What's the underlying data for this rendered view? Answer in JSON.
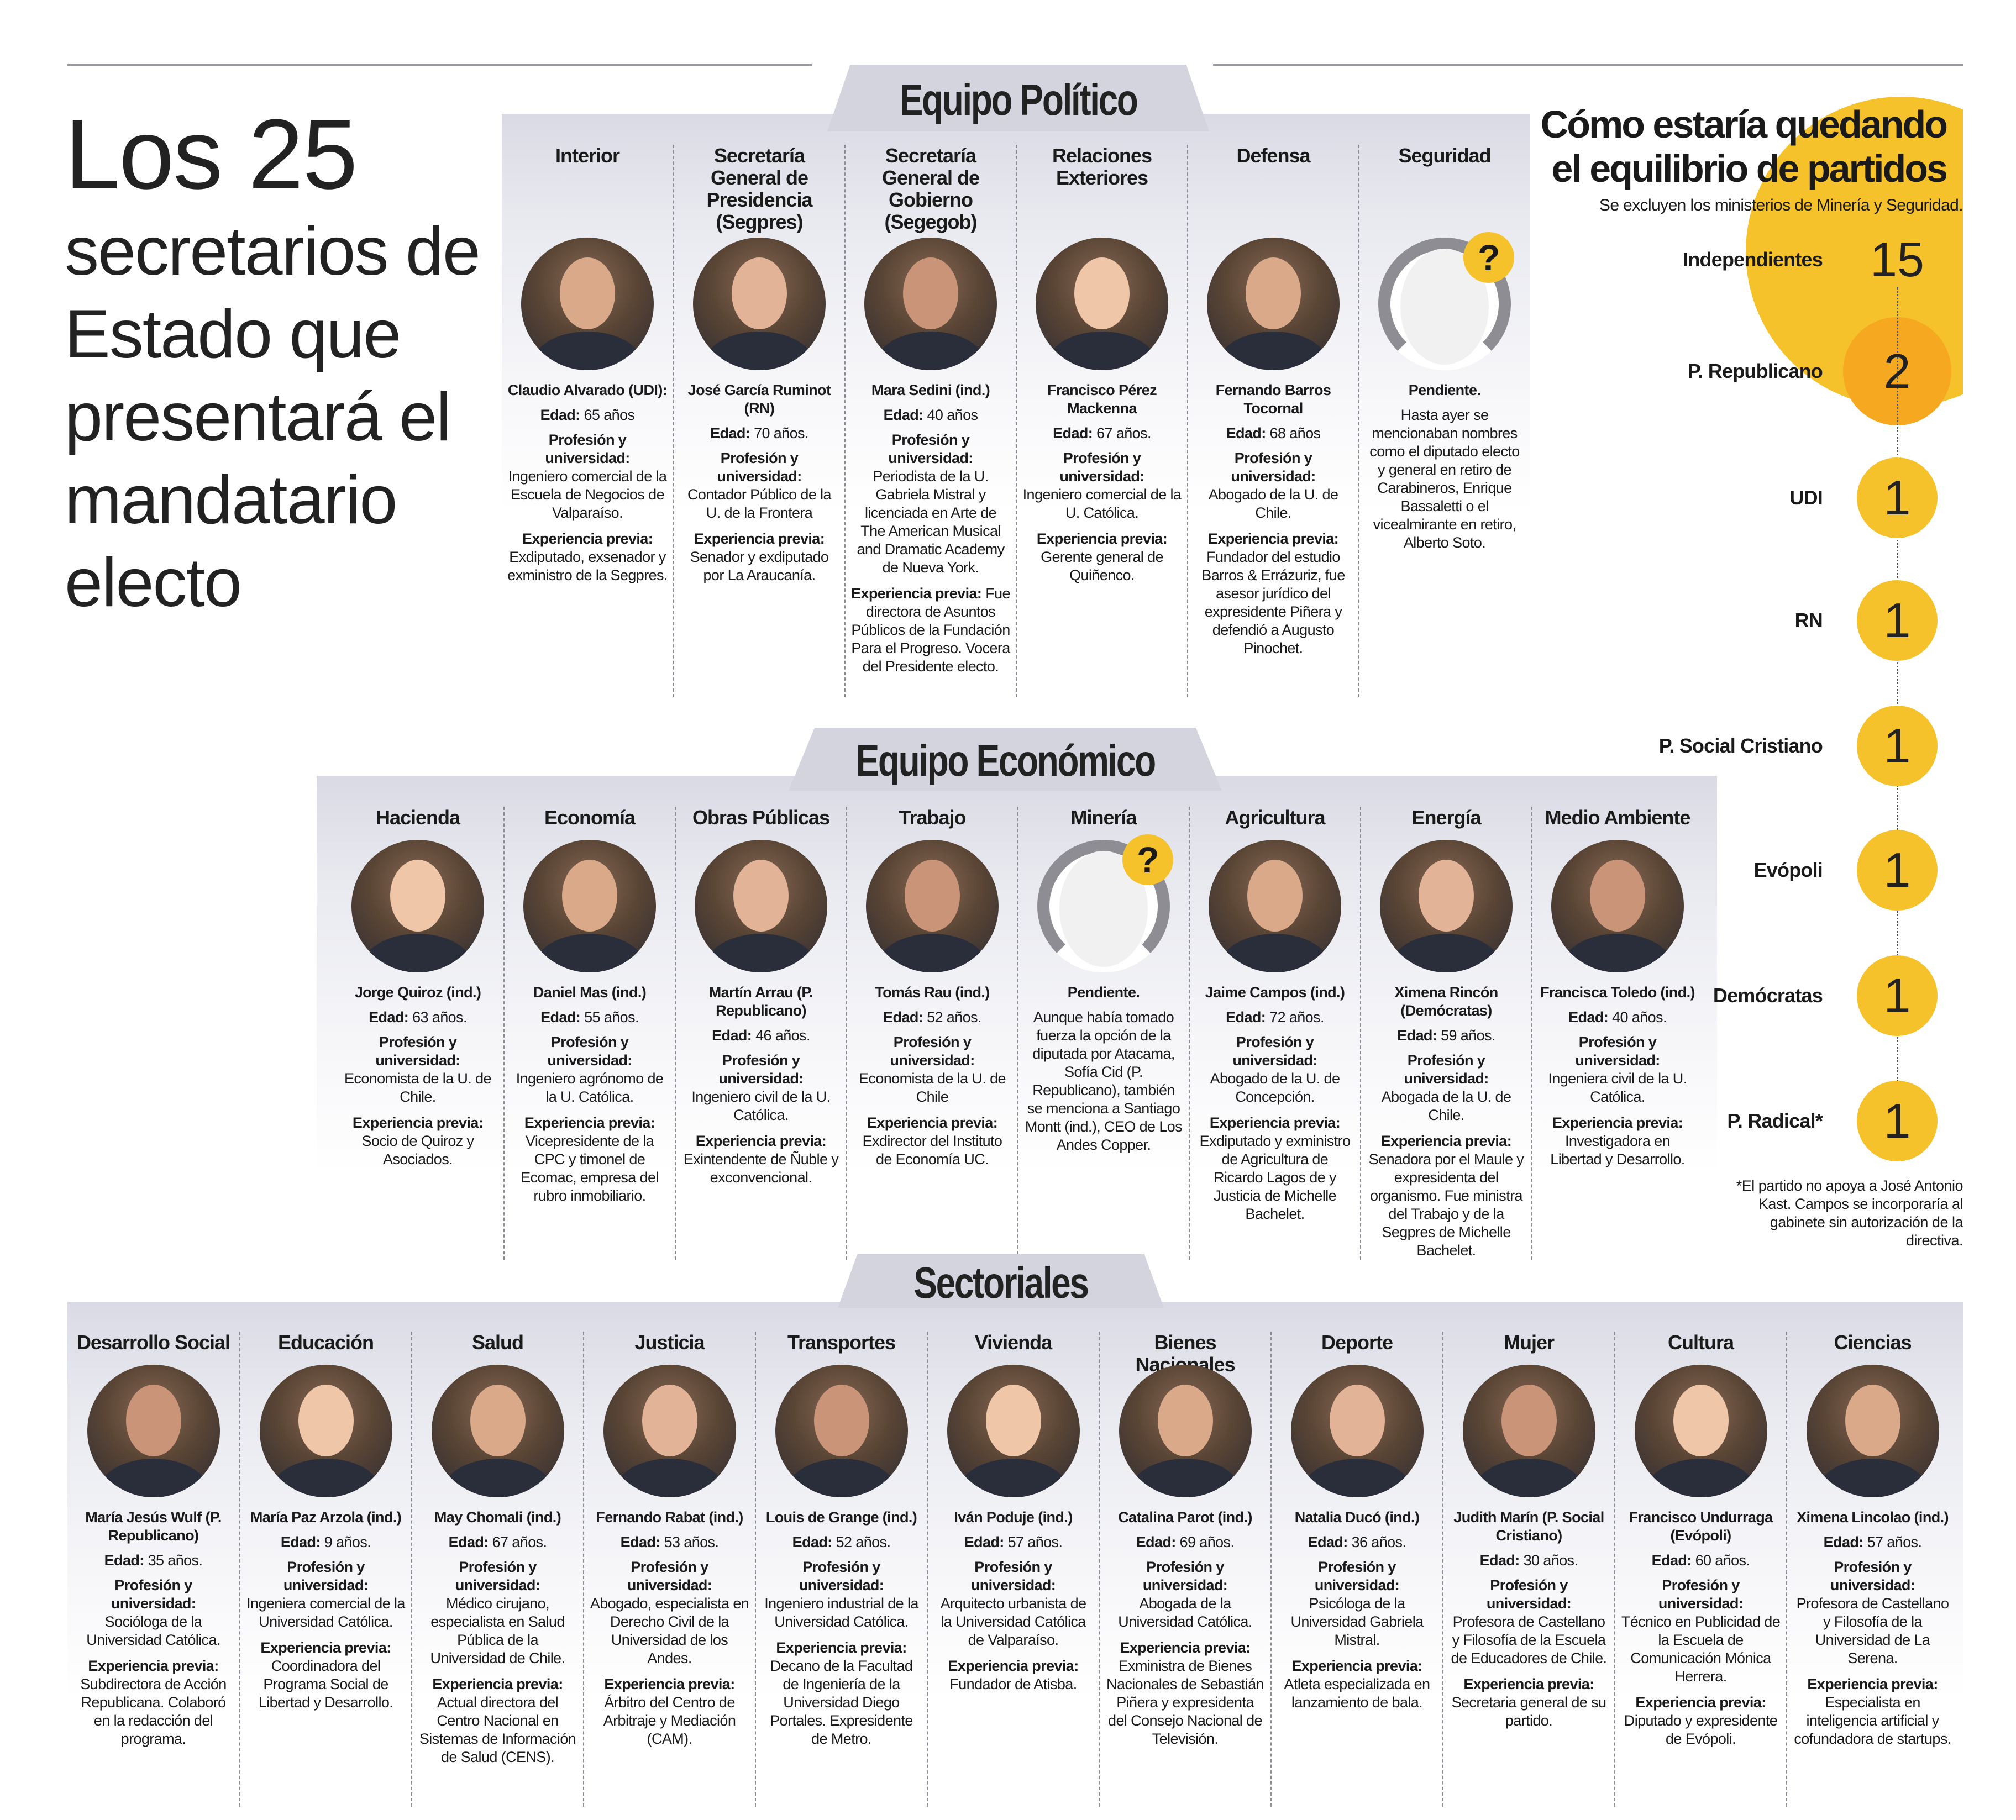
{
  "title": {
    "lines": [
      "Los 25",
      "secretarios de",
      "Estado que",
      "presentará el",
      "mandatario",
      "electo"
    ]
  },
  "labels": {
    "age": "Edad:",
    "profession": "Profesión y universidad:",
    "experience": "Experiencia previa:"
  },
  "sections": [
    {
      "title": "Equipo Político",
      "ministries": [
        {
          "ministry": "Interior",
          "name": "Claudio Alvarado (UDI):",
          "age": "65 años",
          "profession": "Ingeniero comercial de la Escuela de Negocios de Valparaíso.",
          "experience": "Exdiputado, exsenador y exministro de la Segpres."
        },
        {
          "ministry": "Secretaría General de Presidencia (Segpres)",
          "name": "José García Ruminot (RN)",
          "age": "70 años.",
          "profession": "Contador Público de la U. de la Frontera",
          "experience": "Senador y exdiputado por La Araucanía."
        },
        {
          "ministry": "Secretaría General de Gobierno (Segegob)",
          "name": "Mara Sedini (ind.)",
          "age": "40 años",
          "profession": "Periodista de la U. Gabriela Mistral y licenciada en Arte de The American Musical and Dramatic Academy de Nueva York.",
          "experience": "Fue directora de Asuntos Públicos de la Fundación Para el Progreso. Vocera del Presidente electo."
        },
        {
          "ministry": "Relaciones Exteriores",
          "name": "Francisco Pérez Mackenna",
          "age": "67 años.",
          "profession": "Ingeniero comercial de la U. Católica.",
          "experience": "Gerente general de Quiñenco."
        },
        {
          "ministry": "Defensa",
          "name": "Fernando Barros Tocornal",
          "age": "68 años",
          "profession": "Abogado de la U. de Chile.",
          "experience": "Fundador del estudio Barros & Errázuriz, fue asesor jurídico del expresidente Piñera y defendió a Augusto Pinochet."
        },
        {
          "ministry": "Seguridad",
          "pending": true,
          "name": "Pendiente.",
          "note": "Hasta ayer se mencionaban nombres como el diputado electo y general en retiro de Carabineros, Enrique Bassaletti o el vicealmirante en retiro, Alberto Soto."
        }
      ]
    },
    {
      "title": "Equipo Económico",
      "ministries": [
        {
          "ministry": "Hacienda",
          "name": "Jorge Quiroz (ind.)",
          "age": "63 años.",
          "profession": "Economista de la U. de Chile.",
          "experience": "Socio de Quiroz y Asociados."
        },
        {
          "ministry": "Economía",
          "name": "Daniel Mas (ind.)",
          "age": "55 años.",
          "profession": "Ingeniero agrónomo de la U. Católica.",
          "experience": "Vicepresidente de la CPC y timonel de Ecomac, empresa del rubro inmobiliario."
        },
        {
          "ministry": "Obras Públicas",
          "name": "Martín Arrau (P. Republicano)",
          "age": "46 años.",
          "profession": "Ingeniero civil de la U. Católica.",
          "experience": "Exintendente de Ñuble y exconvencional."
        },
        {
          "ministry": "Trabajo",
          "name": "Tomás Rau (ind.)",
          "age": "52 años.",
          "profession": "Economista de la U. de Chile",
          "experience": "Exdirector del Instituto de Economía UC."
        },
        {
          "ministry": "Minería",
          "pending": true,
          "name": "Pendiente.",
          "note": "Aunque había tomado fuerza la opción de la diputada por Atacama, Sofía Cid (P. Republicano), también se menciona a Santiago Montt (ind.), CEO de Los Andes Copper."
        },
        {
          "ministry": "Agricultura",
          "name": "Jaime Campos (ind.)",
          "age": "72 años.",
          "profession": "Abogado de la U. de Concepción.",
          "experience": "Exdiputado y exministro de Agricultura de Ricardo Lagos de y Justicia de Michelle Bachelet."
        },
        {
          "ministry": "Energía",
          "name": "Ximena Rincón (Demócratas)",
          "age": "59 años.",
          "profession": "Abogada de la U. de Chile.",
          "experience": "Senadora por el Maule y expresidenta del organismo. Fue ministra del Trabajo y de la Segpres de Michelle Bachelet."
        },
        {
          "ministry": "Medio Ambiente",
          "name": "Francisca Toledo (ind.)",
          "age": "40 años.",
          "profession": "Ingeniera civil de la U. Católica.",
          "experience": "Investigadora en Libertad y Desarrollo."
        }
      ]
    },
    {
      "title": "Sectoriales",
      "ministries": [
        {
          "ministry": "Desarrollo Social",
          "name": "María Jesús Wulf (P. Republicano)",
          "age": "35 años.",
          "profession": "Socióloga de la Universidad Católica.",
          "experience": "Subdirectora de Acción Republicana. Colaboró en la redacción del programa."
        },
        {
          "ministry": "Educación",
          "name": "María Paz Arzola (ind.)",
          "age": "9 años.",
          "profession": "Ingeniera comercial de la Universidad Católica.",
          "experience": "Coordinadora del Programa Social de Libertad y Desarrollo."
        },
        {
          "ministry": "Salud",
          "name": "May Chomali (ind.)",
          "age": "67 años.",
          "profession": "Médico cirujano, especialista en Salud Pública de la Universidad de Chile.",
          "experience": "Actual directora del Centro Nacional en Sistemas de Información de Salud (CENS)."
        },
        {
          "ministry": "Justicia",
          "name": "Fernando Rabat (ind.)",
          "age": "53 años.",
          "profession": "Abogado, especialista en Derecho Civil de la Universidad de los Andes.",
          "experience": "Árbitro del Centro de Arbitraje y Mediación (CAM)."
        },
        {
          "ministry": "Transportes",
          "name": "Louis de Grange (ind.)",
          "age": "52 años.",
          "profession": "Ingeniero industrial de la Universidad Católica.",
          "experience": "Decano de la Facultad de Ingeniería de la Universidad Diego Portales. Expresidente de Metro."
        },
        {
          "ministry": "Vivienda",
          "name": "Iván Poduje (ind.)",
          "age": "57 años.",
          "profession": "Arquitecto urbanista de la Universidad Católica de Valparaíso.",
          "experience": "Fundador de Atisba."
        },
        {
          "ministry": "Bienes Nacionales",
          "name": "Catalina Parot (ind.)",
          "age": "69 años.",
          "profession": "Abogada de la Universidad Católica.",
          "experience": "Exministra de Bienes Nacionales de Sebastián Piñera y expresidenta del Consejo Nacional de Televisión."
        },
        {
          "ministry": "Deporte",
          "name": "Natalia Ducó (ind.)",
          "age": "36 años.",
          "profession": "Psicóloga de la Universidad Gabriela Mistral.",
          "experience": "Atleta especializada en lanzamiento de bala."
        },
        {
          "ministry": "Mujer",
          "name": "Judith Marín (P. Social Cristiano)",
          "age": "30 años.",
          "profession": "Profesora de Castellano y Filosofía de la Escuela de Educadores de Chile.",
          "experience": "Secretaria general de su partido."
        },
        {
          "ministry": "Cultura",
          "name": "Francisco Undurraga (Evópoli)",
          "age": "60 años.",
          "profession": "Técnico en Publicidad de la Escuela de Comunicación Mónica Herrera.",
          "experience": "Diputado y expresidente de Evópoli."
        },
        {
          "ministry": "Ciencias",
          "name": "Ximena Lincolao (ind.)",
          "age": "57 años.",
          "profession": "Profesora de Castellano y Filosofía de la Universidad de La Serena.",
          "experience": "Especialista en inteligencia artificial y cofundadora de startups."
        }
      ]
    }
  ],
  "sidebar": {
    "title_line1": "Cómo estaría quedando",
    "title_line2": "el equilibrio de partidos",
    "subtitle": "Se excluyen los ministerios de Minería y Seguridad.",
    "parties": [
      {
        "name": "Independientes",
        "count": "15"
      },
      {
        "name": "P. Republicano",
        "count": "2"
      },
      {
        "name": "UDI",
        "count": "1"
      },
      {
        "name": "RN",
        "count": "1"
      },
      {
        "name": "P. Social Cristiano",
        "count": "1"
      },
      {
        "name": "Evópoli",
        "count": "1"
      },
      {
        "name": "Demócratas",
        "count": "1"
      },
      {
        "name": "P. Radical*",
        "count": "1"
      }
    ],
    "footnote": "*El partido no apoya a José Antonio Kast. Campos se incorporaría al gabinete sin autorización de la directiva.",
    "colors": {
      "yellow": "#f6c22c",
      "orange": "#f5a820"
    }
  }
}
